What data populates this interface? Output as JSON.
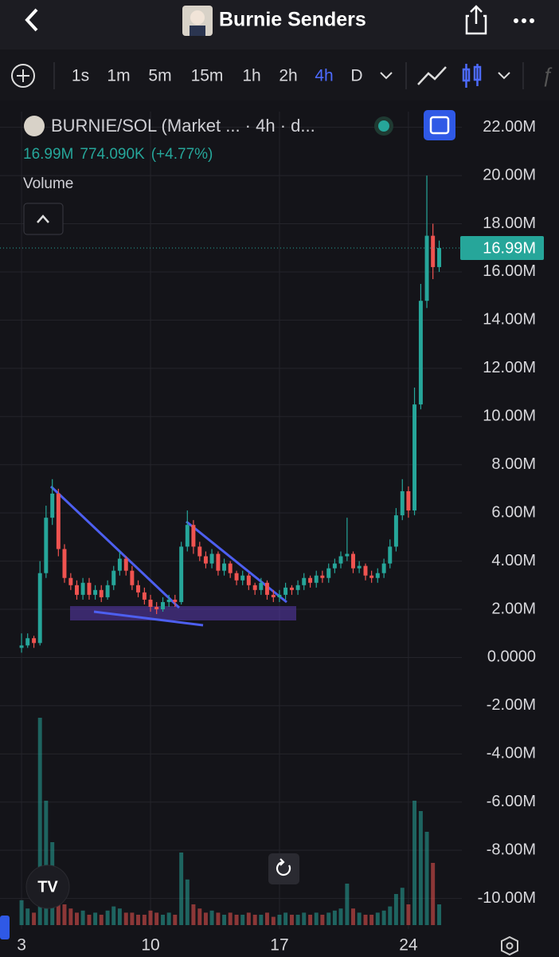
{
  "header": {
    "title": "Burnie Senders"
  },
  "toolbar": {
    "intervals": [
      "1s",
      "1m",
      "5m",
      "15m",
      "1h",
      "2h",
      "4h",
      "D"
    ],
    "active_interval": 6
  },
  "legend": {
    "symbol": "BURNIE/SOL (Market ... · 4h · d...",
    "last": "16.99M",
    "change": "774.090K",
    "change_percent": "(+4.77%)",
    "indicator": "Volume"
  },
  "chart_data": {
    "type": "candlestick",
    "x": [
      3,
      3.33,
      3.67,
      4,
      4.33,
      4.67,
      5,
      5.33,
      5.67,
      6,
      6.33,
      6.67,
      7,
      7.33,
      7.67,
      8,
      8.33,
      8.67,
      9,
      9.33,
      9.67,
      10,
      10.33,
      10.67,
      11,
      11.33,
      11.67,
      12,
      12.33,
      12.67,
      13,
      13.33,
      13.67,
      14,
      14.33,
      14.67,
      15,
      15.33,
      15.67,
      16,
      16.33,
      16.67,
      17,
      17.33,
      17.67,
      18,
      18.33,
      18.67,
      19,
      19.33,
      19.67,
      20,
      20.33,
      20.67,
      21,
      21.33,
      21.67,
      22,
      22.33,
      22.67,
      23,
      23.33,
      23.67,
      24,
      24.33,
      24.67,
      25,
      25.33,
      25.67
    ],
    "open": [
      0.4,
      0.5,
      0.8,
      0.6,
      3.5,
      5.8,
      6.8,
      4.5,
      3.3,
      3.0,
      2.6,
      3.1,
      2.6,
      2.8,
      2.5,
      3.0,
      3.6,
      4.1,
      3.6,
      3.0,
      2.7,
      2.4,
      2.1,
      2.0,
      2.3,
      2.4,
      2.3,
      4.6,
      5.5,
      4.6,
      4.2,
      3.9,
      4.3,
      3.6,
      3.9,
      3.5,
      3.2,
      3.4,
      3.0,
      2.8,
      3.1,
      2.6,
      2.5,
      2.6,
      2.9,
      2.8,
      3.0,
      3.3,
      3.1,
      3.4,
      3.3,
      3.7,
      3.9,
      4.2,
      4.3,
      3.7,
      3.8,
      3.4,
      3.3,
      3.5,
      3.9,
      4.6,
      5.9,
      6.9,
      6.1,
      10.5,
      14.8,
      17.5,
      16.2
    ],
    "high": [
      1.0,
      1.0,
      0.9,
      4.0,
      6.3,
      7.4,
      7.0,
      4.7,
      3.5,
      3.2,
      3.3,
      3.3,
      3.0,
      3.0,
      3.2,
      3.8,
      4.4,
      4.2,
      3.8,
      3.2,
      2.9,
      2.6,
      2.3,
      2.5,
      2.6,
      2.6,
      4.8,
      6.1,
      5.7,
      4.8,
      4.4,
      4.5,
      4.4,
      4.1,
      4.0,
      3.6,
      3.6,
      3.5,
      3.1,
      3.3,
      3.2,
      2.8,
      2.8,
      3.1,
      3.0,
      3.2,
      3.5,
      3.4,
      3.6,
      3.6,
      3.9,
      4.1,
      4.4,
      5.8,
      4.4,
      4.0,
      3.9,
      3.6,
      3.7,
      4.1,
      4.9,
      6.2,
      7.4,
      7.1,
      11.2,
      15.5,
      20.0,
      18.0,
      17.3
    ],
    "low": [
      0.2,
      0.4,
      0.4,
      0.5,
      3.3,
      5.5,
      4.2,
      3.1,
      2.8,
      2.4,
      2.4,
      2.4,
      2.4,
      2.3,
      2.4,
      2.8,
      3.4,
      3.4,
      2.8,
      2.5,
      2.2,
      1.9,
      1.8,
      1.9,
      2.1,
      2.1,
      2.2,
      4.4,
      4.3,
      4.0,
      3.7,
      3.7,
      3.4,
      3.4,
      3.3,
      3.0,
      3.0,
      2.8,
      2.6,
      2.6,
      2.4,
      2.3,
      2.3,
      2.4,
      2.6,
      2.6,
      2.8,
      2.9,
      2.9,
      3.1,
      3.1,
      3.5,
      3.7,
      4.0,
      3.5,
      3.5,
      3.2,
      3.1,
      3.1,
      3.3,
      3.7,
      4.4,
      5.7,
      5.8,
      5.9,
      10.3,
      14.5,
      15.7,
      16.0
    ],
    "close": [
      0.5,
      0.8,
      0.6,
      3.5,
      5.8,
      6.8,
      4.5,
      3.3,
      3.0,
      2.6,
      3.1,
      2.6,
      2.8,
      2.5,
      3.0,
      3.6,
      4.1,
      3.6,
      3.0,
      2.7,
      2.4,
      2.1,
      2.0,
      2.3,
      2.4,
      2.3,
      4.6,
      5.5,
      4.6,
      4.2,
      3.9,
      4.3,
      3.6,
      3.9,
      3.5,
      3.2,
      3.4,
      3.0,
      2.8,
      3.1,
      2.6,
      2.5,
      2.6,
      2.9,
      2.8,
      3.0,
      3.3,
      3.1,
      3.4,
      3.3,
      3.7,
      3.9,
      4.2,
      4.3,
      3.7,
      3.8,
      3.4,
      3.3,
      3.5,
      3.9,
      4.6,
      5.9,
      6.9,
      6.1,
      10.5,
      14.8,
      17.5,
      16.2,
      16.99
    ],
    "volume": [
      12,
      8,
      6,
      100,
      60,
      40,
      18,
      10,
      8,
      6,
      7,
      5,
      6,
      5,
      7,
      9,
      8,
      6,
      6,
      5,
      5,
      7,
      6,
      5,
      6,
      5,
      35,
      22,
      10,
      8,
      6,
      7,
      6,
      5,
      6,
      5,
      5,
      6,
      5,
      5,
      6,
      4,
      5,
      6,
      5,
      5,
      6,
      5,
      6,
      5,
      6,
      7,
      8,
      20,
      8,
      6,
      5,
      5,
      6,
      7,
      9,
      15,
      18,
      10,
      60,
      55,
      45,
      30,
      10
    ],
    "up_color": "#26a69a",
    "down_color": "#ef5350",
    "last_price": {
      "value": 16.99,
      "label": "16.99M"
    },
    "xlim": [
      1.83,
      26.9
    ],
    "xticks": [
      3,
      10,
      17,
      24
    ],
    "ylim": [
      -11.27,
      23.08
    ],
    "yticks": [
      {
        "value": 22,
        "label": "22.00M"
      },
      {
        "value": 20,
        "label": "20.00M"
      },
      {
        "value": 18,
        "label": "18.00M"
      },
      {
        "value": 16,
        "label": "16.00M"
      },
      {
        "value": 14,
        "label": "14.00M"
      },
      {
        "value": 12,
        "label": "12.00M"
      },
      {
        "value": 10,
        "label": "10.00M"
      },
      {
        "value": 8,
        "label": "8.00M"
      },
      {
        "value": 6,
        "label": "6.00M"
      },
      {
        "value": 4,
        "label": "4.00M"
      },
      {
        "value": 2,
        "label": "2.00M"
      },
      {
        "value": 0,
        "label": "0.0000"
      },
      {
        "value": -2,
        "label": "-2.00M"
      },
      {
        "value": -4,
        "label": "-4.00M"
      },
      {
        "value": -6,
        "label": "-6.00M"
      },
      {
        "value": -8,
        "label": "-8.00M"
      },
      {
        "value": -10,
        "label": "-10.00M"
      }
    ],
    "grid": true
  }
}
